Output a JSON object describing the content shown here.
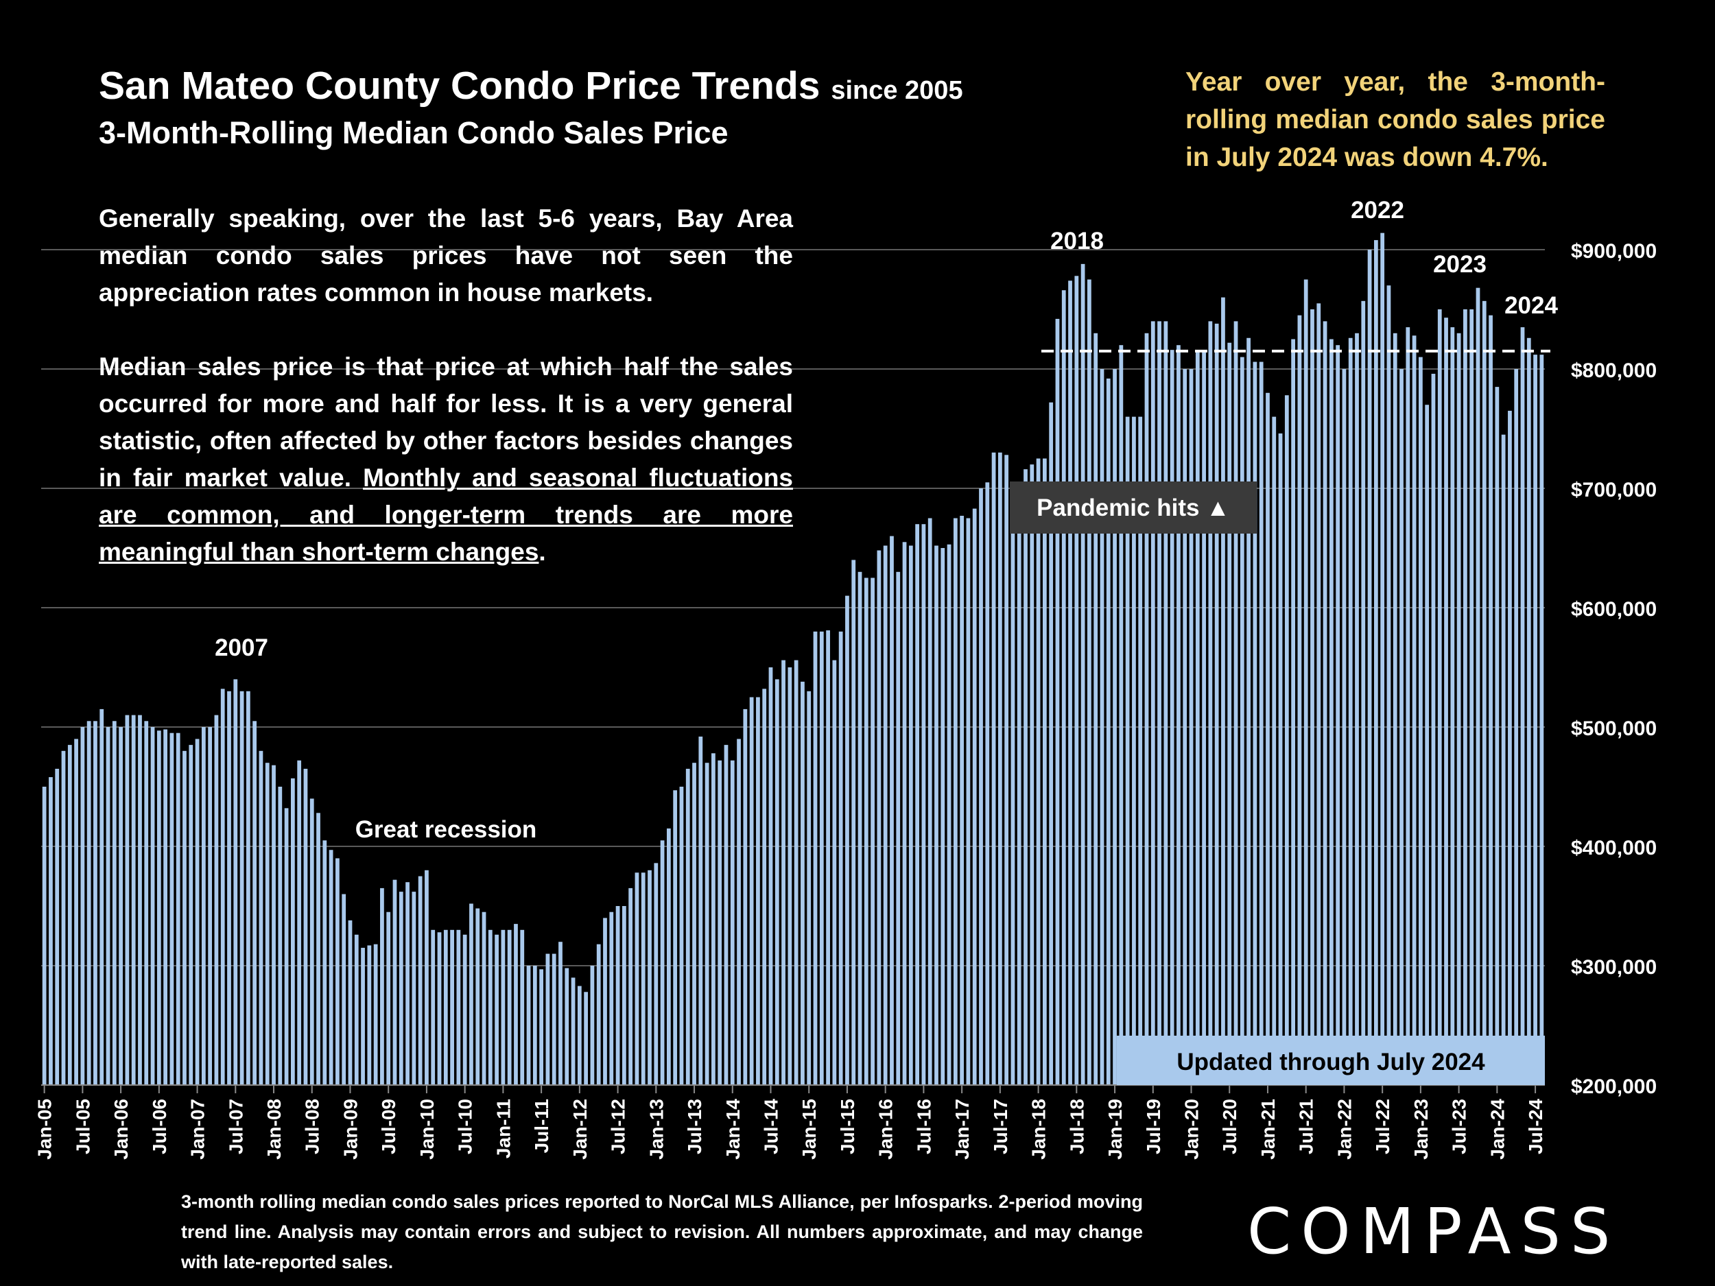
{
  "header": {
    "title": "San Mateo County Condo Price Trends",
    "title_suffix": "since 2005",
    "subtitle": "3-Month-Rolling Median Condo Sales Price"
  },
  "yoy_note": "Year over year, the 3-month-rolling median condo sales price in July 2024 was down 4.7%.",
  "body": {
    "p1": "Generally speaking, over the last 5-6 years, Bay Area median condo sales prices have not seen the appreciation rates common in house markets.",
    "p2_plain": "Median sales price is that price at which half the sales occurred for more and half for less. It is a very general statistic, often affected by other factors besides changes in fair market value.",
    "p2_underlined": "Monthly and seasonal fluctuations are common, and longer-term trends are more meaningful than short-term changes",
    "p2_end": "."
  },
  "footnote": "3-month rolling median condo sales prices reported to NorCal MLS Alliance, per Infosparks. 2-period moving trend line. Analysis may contain errors and subject to revision. All numbers approximate, and may change with late-reported sales.",
  "logo": "COMPASS",
  "colors": {
    "bar": "#a9c9ec",
    "background": "#000000",
    "accent_text": "#f2d37a",
    "callout_bg": "#3a3a3a"
  },
  "chart_data": {
    "type": "bar",
    "title": "San Mateo County Condo Price Trends since 2005",
    "subtitle": "3-Month-Rolling Median Condo Sales Price",
    "ylim": [
      200000,
      900000
    ],
    "y_ticks": [
      "$200,000",
      "$300,000",
      "$400,000",
      "$500,000",
      "$600,000",
      "$700,000",
      "$800,000",
      "$900,000"
    ],
    "y_tick_values": [
      200000,
      300000,
      400000,
      500000,
      600000,
      700000,
      800000,
      900000
    ],
    "x_tick_labels": [
      "Jan-05",
      "Jul-05",
      "Jan-06",
      "Jul-06",
      "Jan-07",
      "Jul-07",
      "Jan-08",
      "Jul-08",
      "Jan-09",
      "Jul-09",
      "Jan-10",
      "Jul-10",
      "Jan-11",
      "Jul-11",
      "Jan-12",
      "Jul-12",
      "Jan-13",
      "Jul-13",
      "Jan-14",
      "Jul-14",
      "Jan-15",
      "Jul-15",
      "Jan-16",
      "Jul-16",
      "Jan-17",
      "Jul-17",
      "Jan-18",
      "Jul-18",
      "Jan-19",
      "Jul-19",
      "Jan-20",
      "Jul-20",
      "Jan-21",
      "Jul-21",
      "Jan-22",
      "Jul-22",
      "Jan-23",
      "Jul-23",
      "Jan-24",
      "Jul-24"
    ],
    "start_month": "Jan-05",
    "reference_line": 815000,
    "annotations": {
      "a2007": "2007",
      "recession": "Great recession",
      "a2018": "2018",
      "a2022": "2022",
      "a2023": "2023",
      "a2024": "2024",
      "pandemic": "Pandemic hits ▲",
      "updated": "Updated through July 2024"
    },
    "values": [
      450000,
      458000,
      465000,
      480000,
      485000,
      490000,
      500000,
      505000,
      505000,
      515000,
      500000,
      505000,
      500000,
      510000,
      510000,
      510000,
      505000,
      500000,
      497000,
      498000,
      495000,
      495000,
      480000,
      485000,
      490000,
      500000,
      500000,
      510000,
      532000,
      530000,
      540000,
      530000,
      530000,
      505000,
      480000,
      470000,
      468000,
      450000,
      432000,
      457000,
      472000,
      465000,
      440000,
      428000,
      405000,
      397000,
      390000,
      360000,
      338000,
      326000,
      315000,
      317000,
      318000,
      365000,
      345000,
      372000,
      362000,
      370000,
      362000,
      375000,
      380000,
      330000,
      328000,
      330000,
      330000,
      330000,
      326000,
      352000,
      348000,
      345000,
      330000,
      326000,
      330000,
      330000,
      335000,
      330000,
      300000,
      300000,
      297000,
      310000,
      310000,
      320000,
      298000,
      290000,
      283000,
      278000,
      300000,
      318000,
      340000,
      345000,
      350000,
      350000,
      365000,
      378000,
      378000,
      380000,
      386000,
      405000,
      415000,
      447000,
      450000,
      465000,
      470000,
      492000,
      470000,
      478000,
      472000,
      485000,
      472000,
      490000,
      515000,
      525000,
      525000,
      532000,
      550000,
      540000,
      556000,
      550000,
      556000,
      538000,
      530000,
      580000,
      580000,
      581000,
      556000,
      580000,
      610000,
      640000,
      630000,
      625000,
      625000,
      648000,
      652000,
      660000,
      630000,
      655000,
      652000,
      670000,
      670000,
      675000,
      652000,
      650000,
      653000,
      675000,
      677000,
      675000,
      683000,
      700000,
      705000,
      730000,
      730000,
      728000,
      700000,
      702000,
      716000,
      720000,
      725000,
      725000,
      772000,
      842000,
      866000,
      874000,
      878000,
      888000,
      875000,
      830000,
      800000,
      792000,
      800000,
      820000,
      760000,
      760000,
      760000,
      830000,
      840000,
      840000,
      840000,
      816000,
      820000,
      800000,
      800000,
      815000,
      815000,
      840000,
      838000,
      860000,
      822000,
      840000,
      810000,
      826000,
      806000,
      806000,
      780000,
      760000,
      746000,
      778000,
      825000,
      845000,
      875000,
      850000,
      855000,
      840000,
      825000,
      820000,
      800000,
      826000,
      830000,
      857000,
      900000,
      908000,
      914000,
      870000,
      830000,
      800000,
      835000,
      828000,
      810000,
      770000,
      796000,
      850000,
      843000,
      835000,
      830000,
      850000,
      850000,
      868000,
      857000,
      845000,
      785000,
      745000,
      765000,
      800000,
      835000,
      826000,
      812000,
      812000
    ]
  }
}
